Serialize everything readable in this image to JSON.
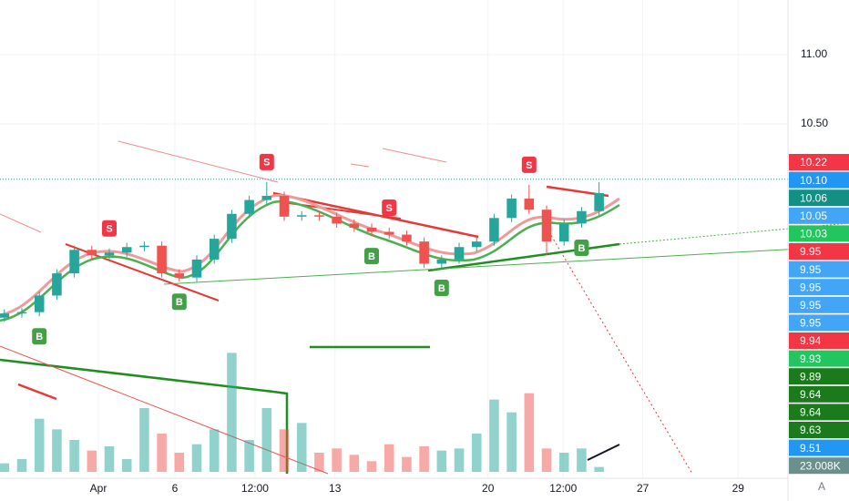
{
  "chart_data": {
    "type": "candlestick",
    "x": [
      0,
      2,
      4,
      6,
      8,
      10,
      12,
      14,
      16,
      18,
      20,
      22,
      24,
      26,
      28,
      30,
      32,
      34,
      36,
      38,
      40,
      42,
      44,
      46,
      48,
      50,
      52,
      54,
      56,
      58,
      60,
      62,
      64,
      66,
      68
    ],
    "open": [
      9.1,
      9.13,
      9.14,
      9.26,
      9.42,
      9.59,
      9.55,
      9.57,
      9.61,
      9.62,
      9.42,
      9.39,
      9.52,
      9.67,
      9.85,
      9.95,
      9.98,
      9.83,
      9.84,
      9.83,
      9.78,
      9.75,
      9.72,
      9.7,
      9.65,
      9.49,
      9.52,
      9.61,
      9.65,
      9.82,
      9.96,
      9.88,
      9.65,
      9.78,
      9.87
    ],
    "high": [
      9.16,
      9.17,
      9.29,
      9.45,
      9.62,
      9.62,
      9.6,
      9.64,
      9.65,
      9.65,
      9.45,
      9.55,
      9.7,
      9.88,
      9.98,
      10.08,
      10.01,
      9.87,
      9.87,
      9.86,
      9.81,
      9.78,
      9.75,
      9.73,
      9.68,
      9.55,
      9.64,
      9.68,
      9.85,
      9.99,
      10.06,
      9.91,
      9.81,
      9.9,
      10.08
    ],
    "low": [
      9.07,
      9.1,
      9.11,
      9.23,
      9.39,
      9.52,
      9.52,
      9.54,
      9.58,
      9.39,
      9.36,
      9.36,
      9.49,
      9.64,
      9.82,
      9.92,
      9.8,
      9.8,
      9.8,
      9.75,
      9.72,
      9.69,
      9.67,
      9.62,
      9.46,
      9.46,
      9.49,
      9.58,
      9.62,
      9.79,
      9.85,
      9.55,
      9.62,
      9.75,
      9.84
    ],
    "close": [
      9.13,
      9.14,
      9.26,
      9.42,
      9.59,
      9.55,
      9.57,
      9.61,
      9.62,
      9.42,
      9.39,
      9.52,
      9.67,
      9.85,
      9.95,
      9.98,
      9.83,
      9.84,
      9.83,
      9.78,
      9.75,
      9.72,
      9.7,
      9.65,
      9.49,
      9.52,
      9.61,
      9.65,
      9.82,
      9.96,
      9.88,
      9.65,
      9.78,
      9.87,
      10.0
    ],
    "volume": [
      40000,
      60000,
      250000,
      200000,
      150000,
      100000,
      120000,
      60000,
      300000,
      180000,
      90000,
      130000,
      200000,
      560000,
      150000,
      300000,
      200000,
      230000,
      90000,
      110000,
      80000,
      50000,
      130000,
      70000,
      120000,
      100000,
      110000,
      180000,
      340000,
      280000,
      370000,
      110000,
      90000,
      110000,
      23008
    ],
    "up_color": "#26a69a",
    "down_color": "#ef5350",
    "xlim": [
      -0.5,
      89.6
    ],
    "xticks": [
      {
        "value": 10.75,
        "label": "Apr"
      },
      {
        "value": 19.5,
        "label": "6"
      },
      {
        "value": 28.66,
        "label": "12:00"
      },
      {
        "value": 37.8,
        "label": "13"
      },
      {
        "value": 55.3,
        "label": "20"
      },
      {
        "value": 63.9,
        "label": "12:00"
      },
      {
        "value": 73.0,
        "label": "27"
      },
      {
        "value": 83.9,
        "label": "29"
      }
    ],
    "ylim": [
      7.94,
      11.395
    ],
    "yticks": [
      {
        "value": 11,
        "label": "11.00"
      },
      {
        "value": 10.5,
        "label": "10.50"
      }
    ],
    "volume_lim": [
      0,
      600000
    ],
    "last_price_line": 10.1,
    "grid": true,
    "signals": [
      {
        "label": "S",
        "x": 12
      },
      {
        "label": "S",
        "x": 30
      },
      {
        "label": "S",
        "x": 44
      },
      {
        "label": "S",
        "x": 60
      },
      {
        "label": "B",
        "x": 4
      },
      {
        "label": "B",
        "x": 20
      },
      {
        "label": "B",
        "x": 42
      },
      {
        "label": "B",
        "x": 50
      },
      {
        "label": "B",
        "x": 66
      }
    ],
    "badges": [
      {
        "value": 10.22,
        "label": "10.22",
        "color": "#f23645"
      },
      {
        "value": 10.1,
        "label": "10.10",
        "color": "#2196f3"
      },
      {
        "value": 10.06,
        "label": "10.06",
        "color": "#138f84"
      },
      {
        "value": 10.05,
        "label": "10.05",
        "color": "#42a5f5"
      },
      {
        "value": 10.03,
        "label": "10.03",
        "color": "#22c55e"
      },
      {
        "value": 9.95,
        "label": "9.95",
        "color": "#f23645"
      },
      {
        "value": 9.95,
        "label": "9.95",
        "color": "#42a5f5"
      },
      {
        "value": 9.95,
        "label": "9.95",
        "color": "#42a5f5"
      },
      {
        "value": 9.95,
        "label": "9.95",
        "color": "#42a5f5"
      },
      {
        "value": 9.95,
        "label": "9.95",
        "color": "#42a5f5"
      },
      {
        "value": 9.94,
        "label": "9.94",
        "color": "#f23645"
      },
      {
        "value": 9.93,
        "label": "9.93",
        "color": "#22c55e"
      },
      {
        "value": 9.89,
        "label": "9.89",
        "color": "#1b7a1b"
      },
      {
        "value": 9.64,
        "label": "9.64",
        "color": "#1b7a1b"
      },
      {
        "value": 9.64,
        "label": "9.64",
        "color": "#1b7a1b"
      },
      {
        "value": 9.63,
        "label": "9.63",
        "color": "#1b7a1b"
      },
      {
        "value": 9.51,
        "label": "9.51",
        "color": "#2196f3"
      },
      {
        "value": 23008,
        "label": "23.008K",
        "color": "#6b8f8c"
      }
    ],
    "scale_button": "A"
  }
}
